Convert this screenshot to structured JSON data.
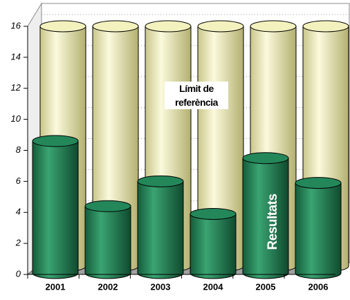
{
  "chart_data": {
    "type": "cylinder3d",
    "categories": [
      "2001",
      "2002",
      "2003",
      "2004",
      "2005",
      "2006"
    ],
    "series": [
      {
        "name": "Límit de referència",
        "color": "#f3f1bd",
        "values": [
          16,
          16,
          16,
          16,
          16,
          16
        ]
      },
      {
        "name": "Resultats",
        "color": "#23875a",
        "values": [
          8.6,
          4.4,
          6.0,
          3.9,
          7.5,
          5.9
        ]
      }
    ],
    "ylim": [
      0,
      16
    ],
    "yticks": [
      0,
      2,
      4,
      6,
      8,
      10,
      12,
      14,
      16
    ],
    "grid": true
  }
}
